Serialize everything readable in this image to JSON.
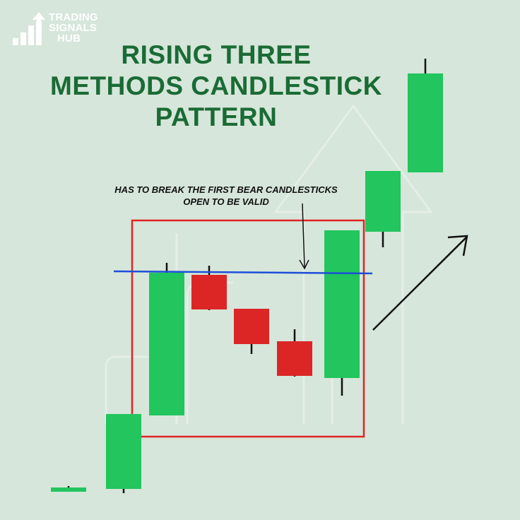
{
  "brand": {
    "lines": [
      "TRADING",
      "SIGNALS",
      "HUB"
    ],
    "icon": "bar-chart-arrow-icon"
  },
  "title": {
    "lines": [
      "RISING THREE",
      "METHODS CANDLESTICK",
      "PATTERN"
    ],
    "color": "#1a6b35"
  },
  "annotation": {
    "lines": [
      "HAS TO BREAK THE FIRST BEAR CANDLESTICKS",
      "OPEN TO BE VALID"
    ]
  },
  "colors": {
    "background": "#d6e6da",
    "bull": "#22c55e",
    "bear": "#dc2626",
    "highlight_box": "#e02424",
    "level_line": "#1d4ed8",
    "wick": "#111111"
  },
  "chart_data": {
    "type": "candlestick",
    "candles": [
      {
        "direction": "bull",
        "open": 40,
        "high": 48,
        "low": 40,
        "close": 46
      },
      {
        "direction": "bull",
        "open": 44,
        "high": 150,
        "low": 38,
        "close": 150
      },
      {
        "direction": "bull",
        "open": 148,
        "high": 364,
        "low": 148,
        "close": 350
      },
      {
        "direction": "bear",
        "open": 347,
        "high": 360,
        "low": 297,
        "close": 298
      },
      {
        "direction": "bear",
        "open": 299,
        "high": 299,
        "low": 235,
        "close": 249
      },
      {
        "direction": "bear",
        "open": 253,
        "high": 270,
        "low": 203,
        "close": 204
      },
      {
        "direction": "bull",
        "open": 201,
        "high": 410,
        "low": 176,
        "close": 410
      },
      {
        "direction": "bull",
        "open": 408,
        "high": 494,
        "low": 386,
        "close": 494
      },
      {
        "direction": "bull",
        "open": 492,
        "high": 653,
        "low": 492,
        "close": 632
      }
    ],
    "level": 352,
    "highlight": {
      "first_candle": 3,
      "last_candle": 7
    }
  }
}
